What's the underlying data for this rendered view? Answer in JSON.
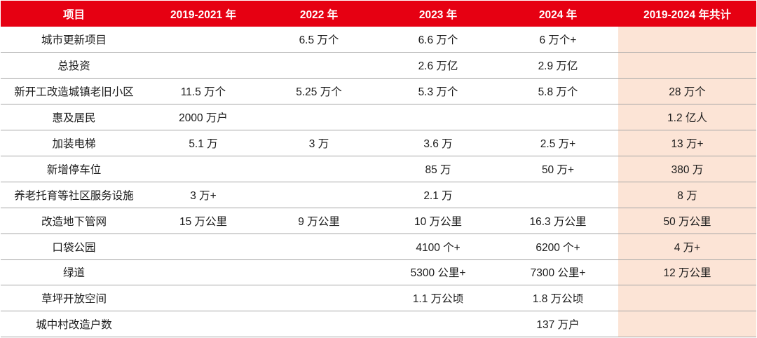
{
  "table": {
    "headers": [
      "项目",
      "2019-2021 年",
      "2022 年",
      "2023 年",
      "2024 年",
      "2019-2024 年共计"
    ],
    "rows": [
      [
        "城市更新项目",
        "",
        "6.5 万个",
        "6.6 万个",
        "6 万个+",
        ""
      ],
      [
        "总投资",
        "",
        "",
        "2.6 万亿",
        "2.9 万亿",
        ""
      ],
      [
        "新开工改造城镇老旧小区",
        "11.5 万个",
        "5.25 万个",
        "5.3 万个",
        "5.8 万个",
        "28 万个"
      ],
      [
        "惠及居民",
        "2000 万户",
        "",
        "",
        "",
        "1.2 亿人"
      ],
      [
        "加装电梯",
        "5.1 万",
        "3 万",
        "3.6 万",
        "2.5 万+",
        "13 万+"
      ],
      [
        "新增停车位",
        "",
        "",
        "85 万",
        "50 万+",
        "380 万"
      ],
      [
        "养老托育等社区服务设施",
        "3 万+",
        "",
        "2.1 万",
        "",
        "8 万"
      ],
      [
        "改造地下管网",
        "15 万公里",
        "9 万公里",
        "10 万公里",
        "16.3 万公里",
        "50 万公里"
      ],
      [
        "口袋公园",
        "",
        "",
        "4100 个+",
        "6200 个+",
        "4 万+"
      ],
      [
        "绿道",
        "",
        "",
        "5300 公里+",
        "7300 公里+",
        "12 万公里"
      ],
      [
        "草坪开放空间",
        "",
        "",
        "1.1 万公顷",
        "1.8 万公顷",
        ""
      ],
      [
        "城中村改造户数",
        "",
        "",
        "",
        "137 万户",
        ""
      ]
    ]
  },
  "colors": {
    "header_bg": "#e60012",
    "header_text": "#ffffff",
    "total_col_bg": "#fce4d6",
    "row_border": "#a6a6a6"
  }
}
